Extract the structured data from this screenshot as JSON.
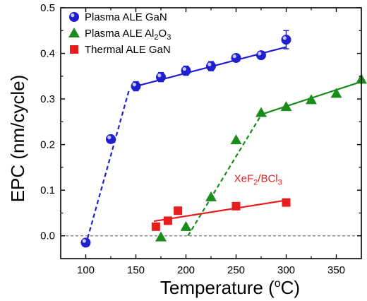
{
  "chart_data": {
    "type": "scatter",
    "xlabel": "Temperature (",
    "xlabel_sup": "o",
    "xlabel_end": "C)",
    "ylabel": "EPC (nm/cycle)",
    "xlim": [
      75,
      375
    ],
    "ylim": [
      -0.05,
      0.5
    ],
    "x_ticks": [
      100,
      150,
      200,
      250,
      300,
      350
    ],
    "y_ticks": [
      0.0,
      0.1,
      0.2,
      0.3,
      0.4,
      0.5
    ],
    "x_tick_labels": [
      "100",
      "150",
      "200",
      "250",
      "300",
      "350"
    ],
    "y_tick_labels": [
      "0.0",
      "0.1",
      "0.2",
      "0.3",
      "0.4",
      "0.5"
    ],
    "legend_position": "top-left",
    "zero_line": true,
    "series": [
      {
        "name": "Plasma ALE GaN",
        "marker": "circle",
        "color": "#1f1fd0",
        "points": [
          {
            "x": 100,
            "y": -0.015
          },
          {
            "x": 125,
            "y": 0.212
          },
          {
            "x": 150,
            "y": 0.328,
            "err": 0.01
          },
          {
            "x": 175,
            "y": 0.348,
            "err": 0.01
          },
          {
            "x": 200,
            "y": 0.362,
            "err": 0.01
          },
          {
            "x": 225,
            "y": 0.372,
            "err": 0.01
          },
          {
            "x": 250,
            "y": 0.39,
            "err": 0.008
          },
          {
            "x": 275,
            "y": 0.396,
            "err": 0.006
          },
          {
            "x": 300,
            "y": 0.43,
            "err": 0.02
          }
        ],
        "fit_lines": [
          {
            "style": "dashed",
            "x": [
              100,
              143
            ],
            "y": [
              -0.02,
              0.318
            ]
          },
          {
            "style": "solid",
            "x": [
              150,
              300
            ],
            "y": [
              0.328,
              0.414
            ]
          }
        ]
      },
      {
        "name": "Plasma ALE Al",
        "name_sub": "2",
        "name_end": "O",
        "name_sub2": "3",
        "marker": "triangle",
        "color": "#1a8c1a",
        "points": [
          {
            "x": 175,
            "y": -0.003
          },
          {
            "x": 200,
            "y": 0.02
          },
          {
            "x": 225,
            "y": 0.085
          },
          {
            "x": 250,
            "y": 0.21
          },
          {
            "x": 275,
            "y": 0.27
          },
          {
            "x": 300,
            "y": 0.283
          },
          {
            "x": 325,
            "y": 0.298
          },
          {
            "x": 350,
            "y": 0.312
          },
          {
            "x": 375,
            "y": 0.343
          }
        ],
        "fit_lines": [
          {
            "style": "dashed",
            "x": [
              202,
              277
            ],
            "y": [
              0.0,
              0.272
            ]
          },
          {
            "style": "solid",
            "x": [
              275,
              375
            ],
            "y": [
              0.266,
              0.338
            ]
          }
        ]
      },
      {
        "name": "Thermal ALE GaN",
        "marker": "square",
        "color": "#e81e1e",
        "points": [
          {
            "x": 170,
            "y": 0.02
          },
          {
            "x": 182,
            "y": 0.033
          },
          {
            "x": 192,
            "y": 0.055
          },
          {
            "x": 250,
            "y": 0.065
          },
          {
            "x": 300,
            "y": 0.073
          }
        ],
        "fit_lines": [
          {
            "style": "solid",
            "x": [
              168,
              300
            ],
            "y": [
              0.032,
              0.078
            ]
          }
        ]
      }
    ],
    "annotation": {
      "text_a": "XeF",
      "sub_a": "2",
      "text_b": "/BCl",
      "sub_b": "3",
      "color": "#e81e1e",
      "x": 248,
      "y": 0.118
    }
  }
}
